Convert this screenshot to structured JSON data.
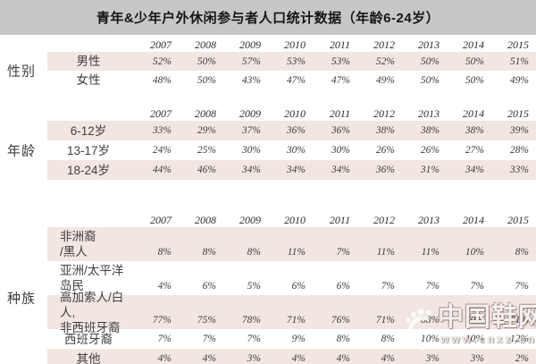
{
  "title": "青年&少年户外休闲参与者人口统计数据（年龄6-24岁）",
  "chart_data": {
    "type": "table",
    "title": "青年&少年户外休闲参与者人口统计数据（年龄6-24岁）",
    "unit": "%",
    "columns": [
      "2007",
      "2008",
      "2009",
      "2010",
      "2011",
      "2012",
      "2013",
      "2014",
      "2015"
    ],
    "sections": [
      {
        "name": "性别",
        "rows": [
          {
            "label": "男性",
            "values": [
              52,
              50,
              57,
              53,
              53,
              52,
              50,
              50,
              51
            ]
          },
          {
            "label": "女性",
            "values": [
              48,
              50,
              43,
              47,
              47,
              49,
              50,
              50,
              49
            ]
          }
        ]
      },
      {
        "name": "年龄",
        "rows": [
          {
            "label": "6-12岁",
            "values": [
              33,
              29,
              37,
              36,
              36,
              38,
              38,
              38,
              39
            ]
          },
          {
            "label": "13-17岁",
            "values": [
              24,
              25,
              30,
              30,
              30,
              26,
              26,
              27,
              28
            ]
          },
          {
            "label": "18-24岁",
            "values": [
              44,
              46,
              34,
              34,
              34,
              36,
              31,
              34,
              33
            ]
          }
        ]
      },
      {
        "name": "种族",
        "rows": [
          {
            "label": "非洲裔\n/黑人",
            "values": [
              8,
              8,
              8,
              11,
              7,
              11,
              11,
              10,
              8
            ]
          },
          {
            "label": "亚洲/太平洋\n岛民",
            "values": [
              4,
              6,
              5,
              6,
              6,
              7,
              7,
              7,
              7
            ]
          },
          {
            "label": "高加索人/白人,\n非西班牙裔",
            "values": [
              77,
              75,
              78,
              71,
              76,
              71,
              68,
              70,
              71
            ]
          },
          {
            "label": "西班牙裔",
            "values": [
              7,
              7,
              7,
              9,
              8,
              8,
              10,
              10,
              12
            ]
          },
          {
            "label": "其他",
            "values": [
              4,
              4,
              3,
              4,
              4,
              4,
              3,
              3,
              2
            ]
          }
        ]
      }
    ]
  },
  "watermark": {
    "icon": "footprint-icon",
    "brand": "中国鞋网",
    "url": "www.cnxz.cn"
  },
  "colors": {
    "header_bg": "#c7c7c7",
    "row_pink": "#f2e6e2",
    "row_white": "#ffffff",
    "text_dark": "#3d3b3a",
    "watermark": "#ffffff"
  }
}
